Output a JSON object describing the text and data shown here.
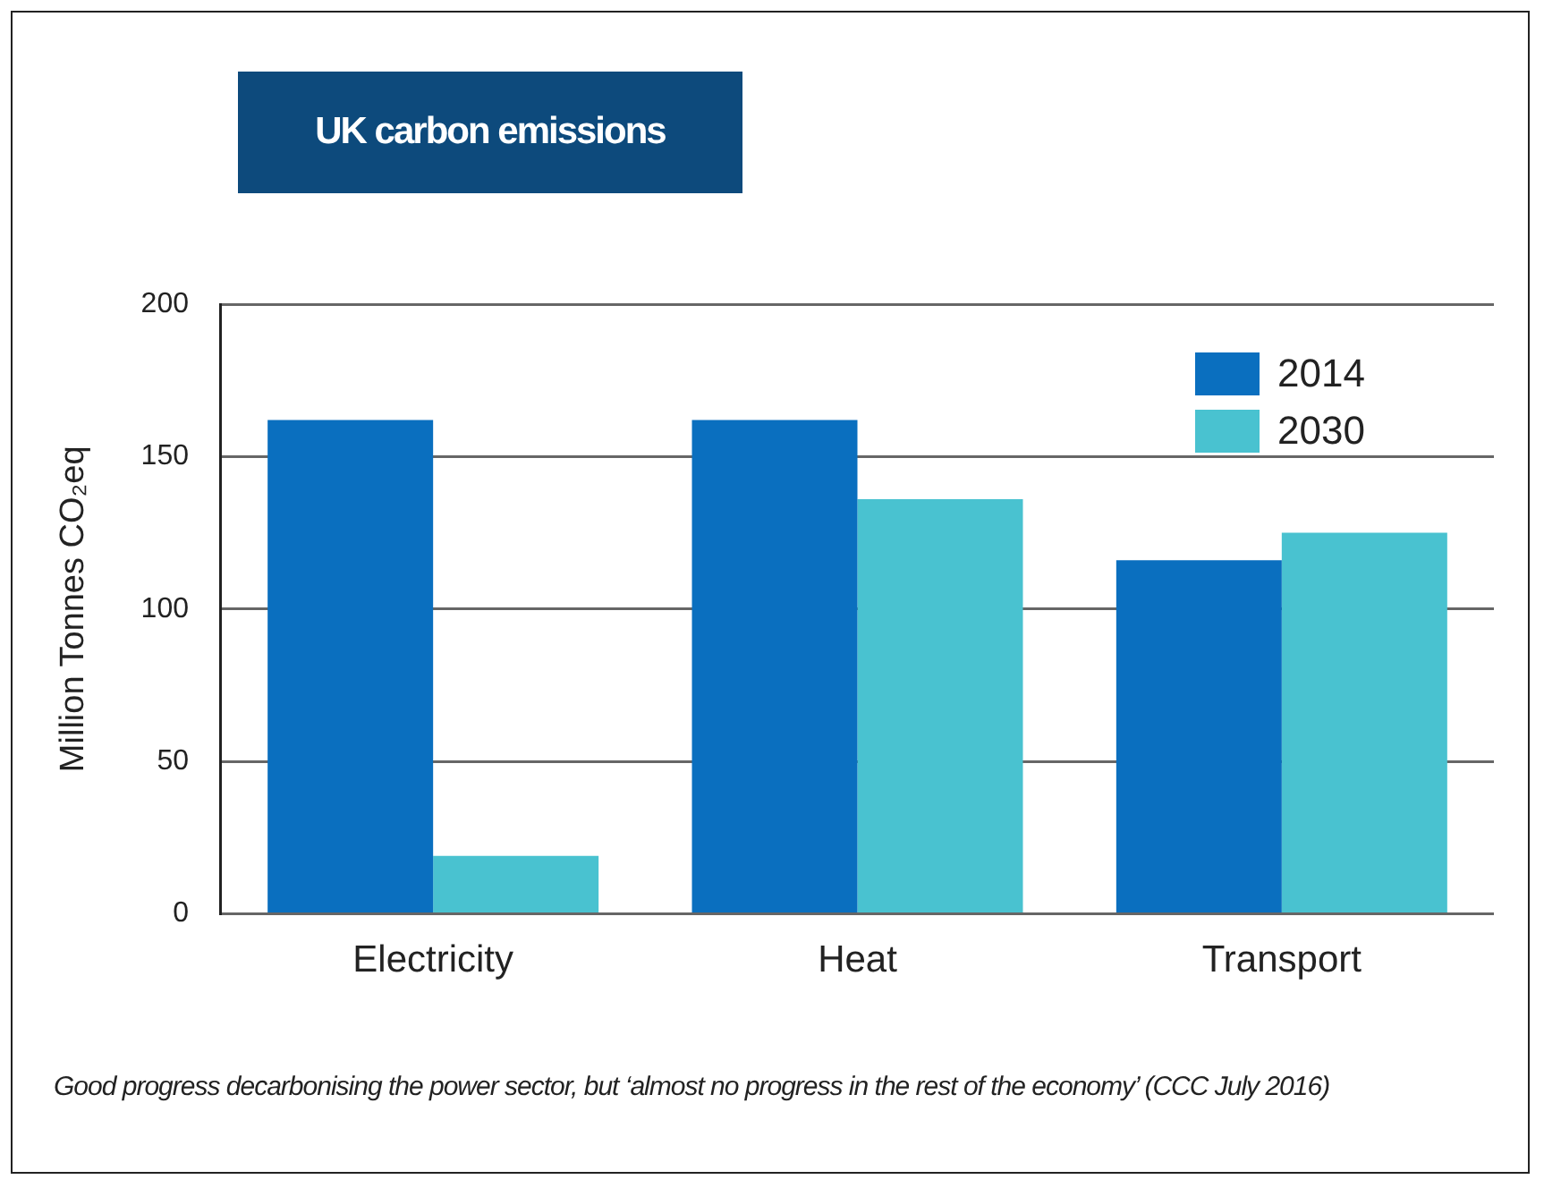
{
  "chart_data": {
    "type": "bar",
    "title": "UK carbon emissions",
    "ylabel": "Million Tonnes CO₂eq",
    "categories": [
      "Electricity",
      "Heat",
      "Transport"
    ],
    "series": [
      {
        "name": "2014",
        "color": "#0a6fbf",
        "values": [
          162,
          162,
          116
        ]
      },
      {
        "name": "2030",
        "color": "#49c2d0",
        "values": [
          19,
          136,
          125
        ]
      }
    ],
    "ylim": [
      0,
      200
    ],
    "yticks": [
      0,
      50,
      100,
      150,
      200
    ],
    "grid": "y",
    "legend": "top right",
    "annotations": [
      "Good progress decarbonising the power sector, but ‘almost no progress in the rest of the economy’ (CCC July 2016)"
    ]
  }
}
